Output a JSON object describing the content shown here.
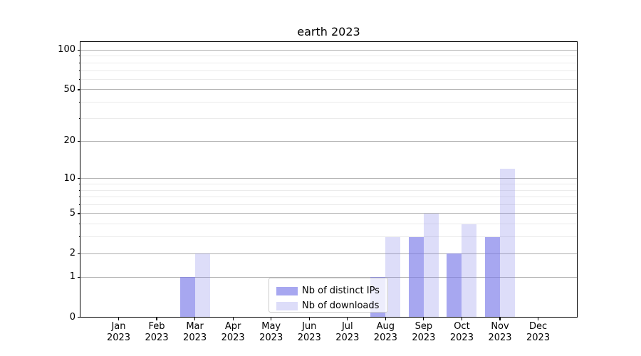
{
  "chart_data": {
    "type": "bar",
    "title": "earth 2023",
    "categories": [
      "Jan 2023",
      "Feb 2023",
      "Mar 2023",
      "Apr 2023",
      "May 2023",
      "Jun 2023",
      "Jul 2023",
      "Aug 2023",
      "Sep 2023",
      "Oct 2023",
      "Nov 2023",
      "Dec 2023"
    ],
    "series": [
      {
        "name": "Nb of distinct IPs",
        "color": "rgba(122,122,232,0.66)",
        "values": [
          0,
          0,
          1,
          0,
          0,
          0,
          0,
          1,
          3,
          2,
          3,
          0
        ]
      },
      {
        "name": "Nb of downloads",
        "color": "rgba(122,122,232,0.26)",
        "values": [
          0,
          0,
          2,
          0,
          0,
          0,
          0,
          3,
          5,
          4,
          12,
          0
        ]
      }
    ],
    "xlabel": "",
    "ylabel": "",
    "yticks": [
      0,
      1,
      2,
      5,
      10,
      20,
      50,
      100
    ],
    "y_minor_ticks": [
      3,
      4,
      6,
      7,
      8,
      9,
      30,
      40,
      60,
      70,
      80,
      90
    ],
    "scale": "log1p",
    "ylim": [
      0,
      116
    ],
    "grid": true,
    "legend_position": "lower-center",
    "colors": {
      "bar_dark": "rgba(122,122,232,0.66)",
      "bar_light": "rgba(122,122,232,0.26)",
      "major_grid": "#b0b0b0",
      "minor_grid": "#ebebeb",
      "axis": "#000000"
    }
  }
}
